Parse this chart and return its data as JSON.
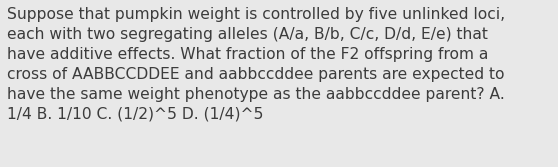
{
  "text": "Suppose that pumpkin weight is controlled by five unlinked loci,\neach with two segregating alleles (A/a, B/b, C/c, D/d, E/e) that\nhave additive effects. What fraction of the F2 offspring from a\ncross of AABBCCDDEE and aabbccddee parents are expected to\nhave the same weight phenotype as the aabbccddee parent? A.\n1/4 B. 1/10 C. (1/2)^5 D. (1/4)^5",
  "background_color": "#e8e8e8",
  "text_color": "#3c3c3c",
  "font_size": 11.2,
  "fig_width": 5.58,
  "fig_height": 1.67,
  "dpi": 100
}
